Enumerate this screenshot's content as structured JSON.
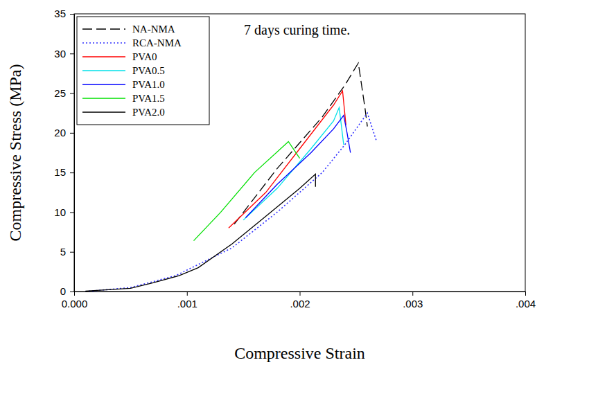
{
  "chart_data": {
    "type": "line",
    "annotation": "7 days curing time.",
    "x_label": "Compressive Strain",
    "y_label": "Compressive Stress (MPa)",
    "xlim": [
      0,
      0.004
    ],
    "ylim": [
      0,
      35
    ],
    "xticks": [
      {
        "value": 0,
        "label": "0.000"
      },
      {
        "value": 0.001,
        "label": ".001"
      },
      {
        "value": 0.002,
        "label": ".002"
      },
      {
        "value": 0.003,
        "label": ".003"
      },
      {
        "value": 0.004,
        "label": ".004"
      }
    ],
    "yticks": [
      0,
      5,
      10,
      15,
      20,
      25,
      30,
      35
    ],
    "grid": false,
    "legend": "upper left",
    "series": [
      {
        "name": "NA-NMA",
        "color": "#000000",
        "line_style": "dashed",
        "x": [
          0.00142,
          0.0018,
          0.0022,
          0.0024,
          0.00252,
          0.00258,
          0.0026
        ],
        "values": [
          8.5,
          15.5,
          22,
          26,
          28.8,
          23,
          20.8
        ]
      },
      {
        "name": "RCA-NMA",
        "color": "#3030ff",
        "line_style": "dotted",
        "x": [
          0.0001,
          0.0005,
          0.0009,
          0.0014,
          0.0018,
          0.0022,
          0.0024,
          0.0026,
          0.00268
        ],
        "values": [
          0,
          0.5,
          2,
          5.5,
          10,
          15,
          18.5,
          22.5,
          19
        ]
      },
      {
        "name": "PVA0",
        "color": "#ff0000",
        "line_style": "solid",
        "x": [
          0.00137,
          0.0017,
          0.002,
          0.0023,
          0.00238,
          0.00241
        ],
        "values": [
          8,
          12.5,
          18,
          23.5,
          25.3,
          21
        ]
      },
      {
        "name": "PVA0.5",
        "color": "#00e0e8",
        "line_style": "solid",
        "x": [
          0.0015,
          0.0018,
          0.0021,
          0.0023,
          0.00235,
          0.00239
        ],
        "values": [
          9,
          13,
          18,
          21.5,
          23.2,
          18.5
        ]
      },
      {
        "name": "PVA1.0",
        "color": "#0000ff",
        "line_style": "solid",
        "x": [
          0.00152,
          0.0018,
          0.0021,
          0.0023,
          0.00239,
          0.00242,
          0.00245
        ],
        "values": [
          9.3,
          13.5,
          17.5,
          20.5,
          22.2,
          20,
          17.5
        ]
      },
      {
        "name": "PVA1.5",
        "color": "#00e000",
        "line_style": "solid",
        "x": [
          0.00106,
          0.0013,
          0.0016,
          0.0019,
          0.002
        ],
        "values": [
          6.4,
          10,
          15,
          18.9,
          16.8
        ]
      },
      {
        "name": "PVA2.0",
        "color": "#000000",
        "line_style": "solid",
        "x": [
          0.0001,
          0.0005,
          0.0007,
          0.00093,
          0.0011,
          0.0014,
          0.0017,
          0.002,
          0.00214,
          0.00214
        ],
        "values": [
          0.05,
          0.4,
          1.1,
          2,
          3,
          6,
          9.5,
          13,
          14.8,
          13.2
        ]
      }
    ]
  }
}
